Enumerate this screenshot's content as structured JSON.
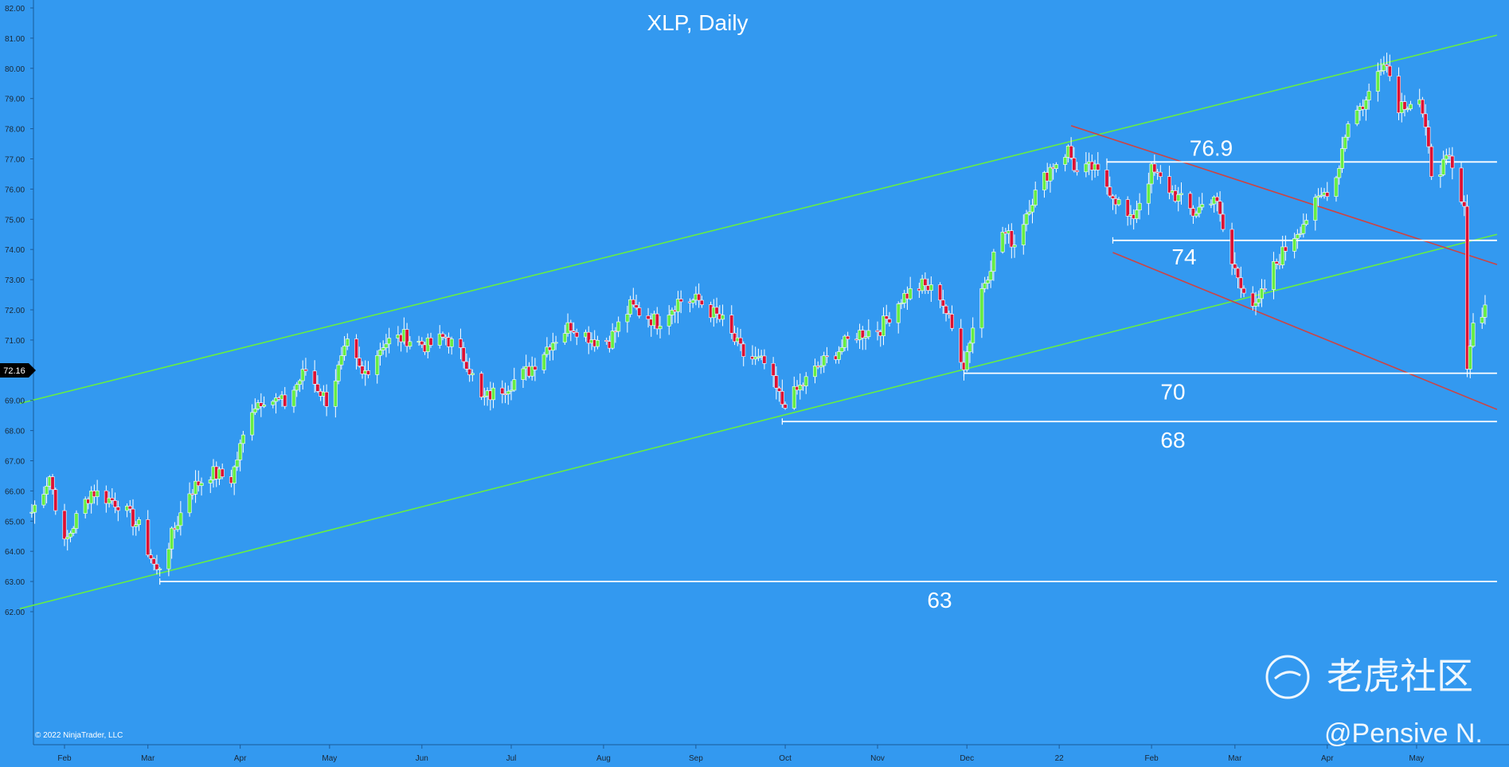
{
  "chart_data": {
    "type": "candlestick",
    "title": "XLP, Daily",
    "ylim": [
      62,
      82.5
    ],
    "y_ticks": [
      "62.00",
      "63.00",
      "64.00",
      "65.00",
      "66.00",
      "67.00",
      "68.00",
      "69.00",
      "70.00",
      "71.00",
      "72.00",
      "73.00",
      "74.00",
      "75.00",
      "76.00",
      "77.00",
      "78.00",
      "79.00",
      "80.00",
      "81.00",
      "82.00"
    ],
    "x_ticks": [
      {
        "label": "Feb",
        "x": "2021-02-01"
      },
      {
        "label": "Mar",
        "x": "2021-03-01"
      },
      {
        "label": "Apr",
        "x": "2021-04-01"
      },
      {
        "label": "May",
        "x": "2021-05-01"
      },
      {
        "label": "Jun",
        "x": "2021-06-01"
      },
      {
        "label": "Jul",
        "x": "2021-07-01"
      },
      {
        "label": "Aug",
        "x": "2021-08-01"
      },
      {
        "label": "Sep",
        "x": "2021-09-01"
      },
      {
        "label": "Oct",
        "x": "2021-10-01"
      },
      {
        "label": "Nov",
        "x": "2021-11-01"
      },
      {
        "label": "Dec",
        "x": "2021-12-01"
      },
      {
        "label": "22",
        "x": "2022-01-01"
      },
      {
        "label": "Feb",
        "x": "2022-02-01"
      },
      {
        "label": "Mar",
        "x": "2022-03-01"
      },
      {
        "label": "Apr",
        "x": "2022-04-01"
      },
      {
        "label": "May",
        "x": "2022-05-01"
      }
    ],
    "current_price": "72.16",
    "price_path": [
      [
        "2021-01-21",
        65.3
      ],
      [
        "2021-01-27",
        66.5
      ],
      [
        "2021-02-01",
        64.2
      ],
      [
        "2021-02-05",
        65.1
      ],
      [
        "2021-02-10",
        66.0
      ],
      [
        "2021-02-19",
        65.6
      ],
      [
        "2021-02-26",
        64.8
      ],
      [
        "2021-03-04",
        63.3
      ],
      [
        "2021-03-09",
        64.5
      ],
      [
        "2021-03-15",
        66.0
      ],
      [
        "2021-03-22",
        66.6
      ],
      [
        "2021-03-29",
        66.4
      ],
      [
        "2021-04-05",
        68.8
      ],
      [
        "2021-04-09",
        69.1
      ],
      [
        "2021-04-16",
        68.9
      ],
      [
        "2021-04-23",
        70.0
      ],
      [
        "2021-04-30",
        69.0
      ],
      [
        "2021-05-07",
        70.8
      ],
      [
        "2021-05-12",
        69.8
      ],
      [
        "2021-05-19",
        70.9
      ],
      [
        "2021-05-26",
        71.1
      ],
      [
        "2021-06-03",
        70.8
      ],
      [
        "2021-06-09",
        71.1
      ],
      [
        "2021-06-16",
        70.3
      ],
      [
        "2021-06-21",
        69.0
      ],
      [
        "2021-06-28",
        69.4
      ],
      [
        "2021-07-07",
        70.0
      ],
      [
        "2021-07-14",
        70.9
      ],
      [
        "2021-07-21",
        71.5
      ],
      [
        "2021-07-29",
        71.0
      ],
      [
        "2021-08-03",
        71.0
      ],
      [
        "2021-08-10",
        72.1
      ],
      [
        "2021-08-19",
        71.6
      ],
      [
        "2021-08-26",
        72.3
      ],
      [
        "2021-09-02",
        72.3
      ],
      [
        "2021-09-10",
        71.6
      ],
      [
        "2021-09-17",
        70.5
      ],
      [
        "2021-09-24",
        70.2
      ],
      [
        "2021-09-30",
        68.9
      ],
      [
        "2021-10-04",
        69.2
      ],
      [
        "2021-10-12",
        70.1
      ],
      [
        "2021-10-18",
        70.6
      ],
      [
        "2021-10-25",
        71.2
      ],
      [
        "2021-11-02",
        71.4
      ],
      [
        "2021-11-09",
        72.4
      ],
      [
        "2021-11-16",
        72.8
      ],
      [
        "2021-11-22",
        72.5
      ],
      [
        "2021-11-30",
        70.2
      ],
      [
        "2021-12-06",
        72.7
      ],
      [
        "2021-12-13",
        74.6
      ],
      [
        "2021-12-17",
        74.2
      ],
      [
        "2021-12-22",
        75.5
      ],
      [
        "2021-12-29",
        76.7
      ],
      [
        "2022-01-04",
        77.3
      ],
      [
        "2022-01-07",
        76.5
      ],
      [
        "2022-01-12",
        76.7
      ],
      [
        "2022-01-18",
        76.0
      ],
      [
        "2022-01-25",
        74.9
      ],
      [
        "2022-02-01",
        76.6
      ],
      [
        "2022-02-08",
        75.9
      ],
      [
        "2022-02-15",
        75.2
      ],
      [
        "2022-02-22",
        75.8
      ],
      [
        "2022-02-28",
        73.5
      ],
      [
        "2022-03-08",
        72.0
      ],
      [
        "2022-03-14",
        73.4
      ],
      [
        "2022-03-21",
        74.5
      ],
      [
        "2022-03-29",
        75.6
      ],
      [
        "2022-04-04",
        76.4
      ],
      [
        "2022-04-08",
        78.3
      ],
      [
        "2022-04-14",
        78.9
      ],
      [
        "2022-04-20",
        80.4
      ],
      [
        "2022-04-25",
        78.8
      ],
      [
        "2022-05-02",
        79.0
      ],
      [
        "2022-05-06",
        76.6
      ],
      [
        "2022-05-12",
        76.9
      ],
      [
        "2022-05-17",
        75.2
      ],
      [
        "2022-05-18",
        70.3
      ],
      [
        "2022-05-20",
        71.5
      ],
      [
        "2022-05-24",
        72.16
      ]
    ],
    "annotations": [
      {
        "label": "76.9",
        "type": "horizontal",
        "y": 76.9,
        "x_start": "2022-01-17",
        "x_end": "2022-05-28"
      },
      {
        "label": "74",
        "type": "horizontal",
        "y": 74.3,
        "x_start": "2022-01-19",
        "x_end": "2022-05-28"
      },
      {
        "label": "70",
        "type": "horizontal",
        "y": 69.9,
        "x_start": "2021-11-30",
        "x_end": "2022-05-28"
      },
      {
        "label": "68",
        "type": "horizontal",
        "y": 68.3,
        "x_start": "2021-09-30",
        "x_end": "2022-05-28"
      },
      {
        "label": "63",
        "type": "horizontal",
        "y": 63.0,
        "x_start": "2021-03-05",
        "x_end": "2022-05-28"
      }
    ],
    "trendlines": [
      {
        "color": "#66ee44",
        "from": [
          "2021-01-17",
          68.9
        ],
        "to": [
          "2022-05-28",
          81.1
        ]
      },
      {
        "color": "#66ee44",
        "from": [
          "2021-01-17",
          62.1
        ],
        "to": [
          "2022-05-28",
          74.5
        ]
      },
      {
        "color": "#cc4444",
        "from": [
          "2022-01-05",
          78.1
        ],
        "to": [
          "2022-05-28",
          73.5
        ]
      },
      {
        "color": "#cc4444",
        "from": [
          "2022-01-19",
          73.9
        ],
        "to": [
          "2022-05-28",
          68.7
        ]
      }
    ]
  },
  "copyright": "© 2022 NinjaTrader, LLC",
  "watermark": {
    "brand": "老虎社区",
    "author": "@Pensive N."
  },
  "colors": {
    "background": "#3399f0",
    "up": "#66ee44",
    "down": "#dd1133",
    "level": "#ffffff"
  }
}
